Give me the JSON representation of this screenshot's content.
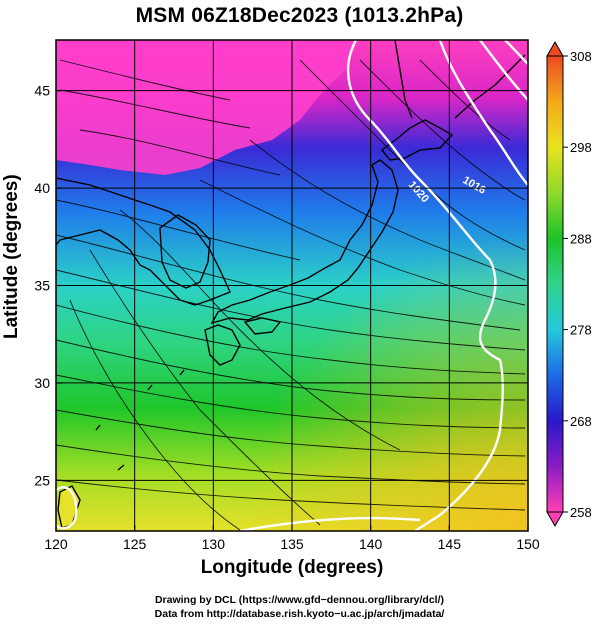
{
  "title": "MSM 06Z18Dec2023 (1013.2hPa)",
  "axes": {
    "xlabel": "Longitude (degrees)",
    "ylabel": "Latitude  (degrees)",
    "x_ticks": [
      "120",
      "125",
      "130",
      "135",
      "140",
      "145",
      "150"
    ],
    "y_ticks": [
      "25",
      "30",
      "35",
      "40",
      "45"
    ],
    "x_range": [
      120,
      150
    ],
    "y_range": [
      22.4,
      47.6
    ],
    "grid": true
  },
  "colorbar": {
    "ticks": [
      "258",
      "268",
      "278",
      "288",
      "298",
      "308"
    ],
    "range": [
      258,
      308
    ],
    "colors": [
      "#ff3fb5",
      "#8a1dc4",
      "#2a18c9",
      "#1e6ae6",
      "#25c8dc",
      "#2fd38b",
      "#1ec22a",
      "#8fd92a",
      "#e9e320",
      "#f5a81a",
      "#ee4a22"
    ]
  },
  "contour_labels": [
    "1020",
    "1016"
  ],
  "credits": {
    "line1": "Drawing by DCL (https://www.gfd−dennou.org/library/dcl/)",
    "line2": "Data from http://database.rish.kyoto−u.ac.jp/arch/jmadata/"
  }
}
